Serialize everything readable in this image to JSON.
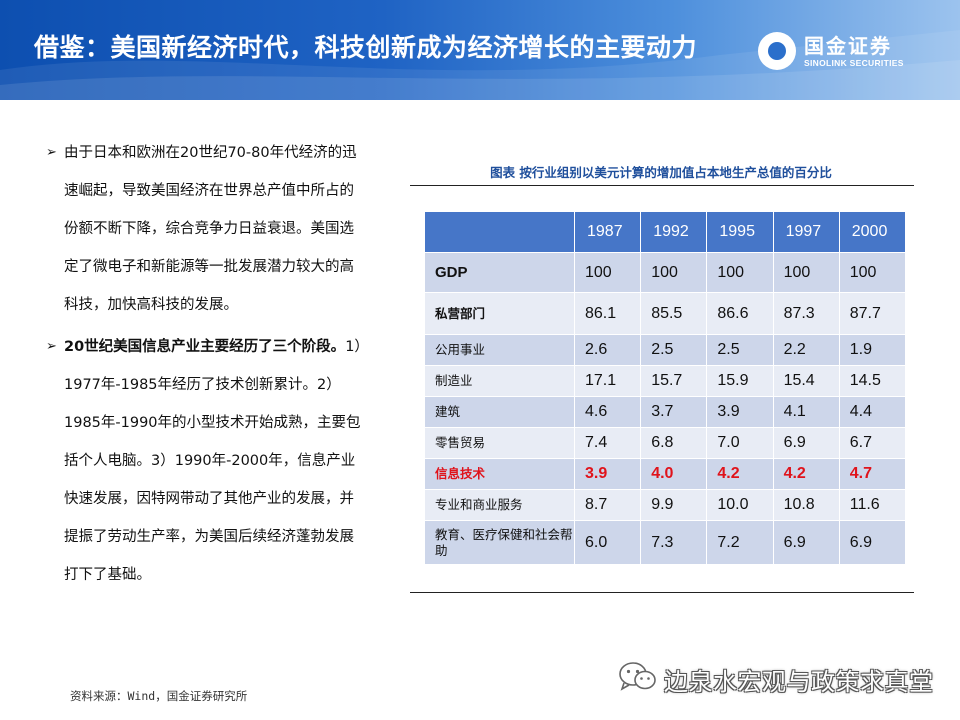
{
  "header": {
    "title": "借鉴：美国新经济时代，科技创新成为经济增长的主要动力",
    "logo_name": "国金证券",
    "logo_sub": "SINOLINK SECURITIES"
  },
  "bullets": [
    {
      "strong": "",
      "text": "由于日本和欧洲在20世纪70-80年代经济的迅速崛起，导致美国经济在世界总产值中所占的份额不断下降，综合竞争力日益衰退。美国选定了微电子和新能源等一批发展潜力较大的高科技，加快高科技的发展。"
    },
    {
      "strong": "20世纪美国信息产业主要经历了三个阶段。",
      "text": "1）1977年-1985年经历了技术创新累计。2）1985年-1990年的小型技术开始成熟，主要包括个人电脑。3）1990年-2000年，信息产业快速发展，因特网带动了其他产业的发展，并提振了劳动生产率，为美国后续经济蓬勃发展打下了基础。"
    }
  ],
  "table": {
    "caption": "图表 按行业组别以美元计算的增加值占本地生产总值的百分比",
    "columns": [
      "1987",
      "1992",
      "1995",
      "1997",
      "2000"
    ],
    "rows": [
      {
        "label": "GDP",
        "values": [
          "100",
          "100",
          "100",
          "100",
          "100"
        ]
      },
      {
        "label": "私营部门",
        "values": [
          "86.1",
          "85.5",
          "86.6",
          "87.3",
          "87.7"
        ]
      },
      {
        "label": "公用事业",
        "values": [
          "2.6",
          "2.5",
          "2.5",
          "2.2",
          "1.9"
        ]
      },
      {
        "label": "制造业",
        "values": [
          "17.1",
          "15.7",
          "15.9",
          "15.4",
          "14.5"
        ]
      },
      {
        "label": "建筑",
        "values": [
          "4.6",
          "3.7",
          "3.9",
          "4.1",
          "4.4"
        ]
      },
      {
        "label": "零售贸易",
        "values": [
          "7.4",
          "6.8",
          "7.0",
          "6.9",
          "6.7"
        ]
      },
      {
        "label": "信息技术",
        "values": [
          "3.9",
          "4.0",
          "4.2",
          "4.2",
          "4.7"
        ]
      },
      {
        "label": "专业和商业服务",
        "values": [
          "8.7",
          "9.9",
          "10.0",
          "10.8",
          "11.6"
        ]
      },
      {
        "label": "教育、医疗保健和社会帮助",
        "values": [
          "6.0",
          "7.3",
          "7.2",
          "6.9",
          "6.9"
        ]
      }
    ],
    "highlight_color": "#e0131b",
    "header_color": "#4676c8"
  },
  "footer": {
    "source": "资料来源：Wind，国金证券研究所",
    "watermark": "边泉水宏观与政策求真堂"
  }
}
